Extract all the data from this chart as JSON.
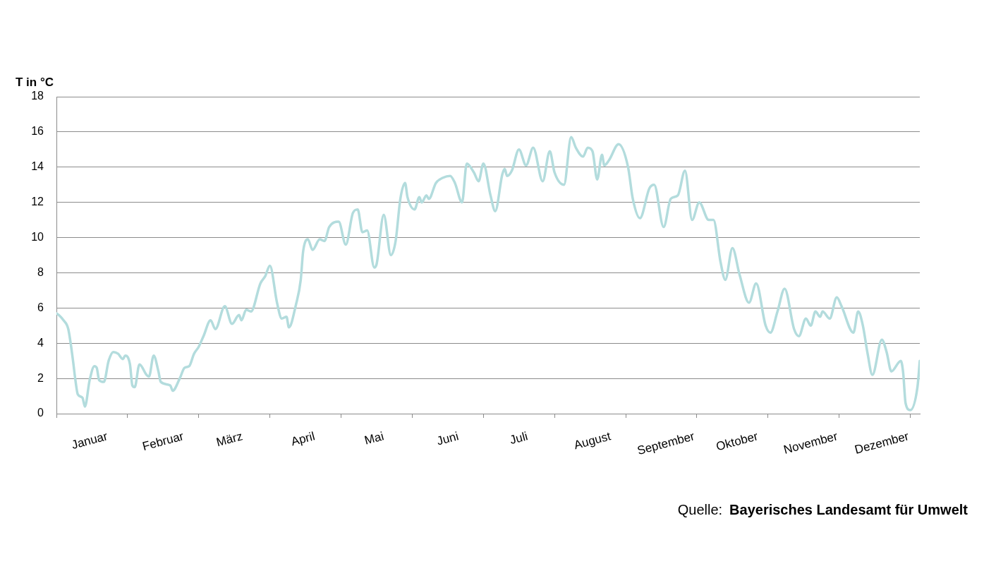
{
  "chart_data": {
    "type": "line",
    "ylabel": "T in °C",
    "annotations": [
      "Quelle:",
      "Bayerisches Landesamt für Umwelt"
    ],
    "x": [
      "--01-01",
      "--01-02",
      "--01-04",
      "--01-06",
      "--01-08",
      "--01-09",
      "--01-10",
      "--01-12",
      "--01-13",
      "--01-15",
      "--01-17",
      "--01-18",
      "--01-19",
      "--01-21",
      "--01-23",
      "--01-25",
      "--01-27",
      "--01-29",
      "--01-30",
      "--02-01",
      "--02-02",
      "--02-03",
      "--02-05",
      "--02-08",
      "--02-09",
      "--02-11",
      "--02-13",
      "--02-14",
      "--02-18",
      "--02-19",
      "--02-22",
      "--02-24",
      "--02-26",
      "--02-28",
      "--03-02",
      "--03-04",
      "--03-07",
      "--03-09",
      "--03-13",
      "--03-16",
      "--03-19",
      "--03-20",
      "--03-22",
      "--03-24",
      "--03-28",
      "--03-30",
      "--04-01",
      "--04-04",
      "--04-06",
      "--04-08",
      "--04-09",
      "--04-12",
      "--04-14",
      "--04-15",
      "--04-17",
      "--04-19",
      "--04-22",
      "--04-24",
      "--04-26",
      "--04-30",
      "--05-03",
      "--05-06",
      "--05-08",
      "--05-10",
      "--05-12",
      "--05-15",
      "--05-16",
      "--05-19",
      "--05-22",
      "--05-24",
      "--05-26",
      "--05-28",
      "--05-29",
      "--06-01",
      "--06-03",
      "--06-04",
      "--06-06",
      "--06-07",
      "--06-10",
      "--06-13",
      "--06-16",
      "--06-18",
      "--06-21",
      "--06-23",
      "--06-26",
      "--06-28",
      "--06-30",
      "--07-03",
      "--07-05",
      "--07-08",
      "--07-09",
      "--07-10",
      "--07-12",
      "--07-15",
      "--07-18",
      "--07-21",
      "--07-25",
      "--07-28",
      "--07-30",
      "--08-03",
      "--08-06",
      "--08-08",
      "--08-11",
      "--08-13",
      "--08-15",
      "--08-17",
      "--08-19",
      "--08-20",
      "--08-22",
      "--08-26",
      "--08-30",
      "--09-01",
      "--09-04",
      "--09-08",
      "--09-10",
      "--09-14",
      "--09-17",
      "--09-20",
      "--09-23",
      "--09-26",
      "--09-29",
      "--10-03",
      "--10-05",
      "--10-08",
      "--10-10",
      "--10-13",
      "--10-16",
      "--10-20",
      "--10-23",
      "--10-27",
      "--10-29",
      "--11-01",
      "--11-04",
      "--11-08",
      "--11-10",
      "--11-13",
      "--11-15",
      "--11-17",
      "--11-19",
      "--11-20",
      "--11-23",
      "--11-26",
      "--11-28",
      "--12-03",
      "--12-05",
      "--12-07",
      "--12-09",
      "--12-11",
      "--12-15",
      "--12-17",
      "--12-19",
      "--12-23",
      "--12-24",
      "--12-25",
      "--12-27",
      "--12-30",
      "--12-31"
    ],
    "values": [
      5.7,
      5.6,
      5.3,
      4.8,
      3.0,
      1.9,
      1.1,
      0.9,
      0.4,
      1.9,
      2.7,
      2.6,
      1.9,
      1.8,
      3.0,
      3.5,
      3.4,
      3.1,
      3.3,
      2.8,
      1.6,
      1.5,
      2.8,
      2.2,
      2.1,
      3.3,
      2.4,
      1.8,
      1.6,
      1.3,
      2.0,
      2.6,
      2.7,
      3.4,
      3.8,
      4.4,
      5.3,
      4.8,
      6.1,
      5.1,
      5.6,
      5.3,
      5.9,
      5.8,
      7.4,
      7.8,
      8.4,
      6.3,
      5.4,
      5.5,
      4.9,
      6.2,
      7.6,
      9.2,
      9.9,
      9.3,
      9.9,
      9.8,
      10.6,
      10.9,
      9.6,
      11.4,
      11.6,
      10.3,
      10.4,
      8.3,
      8.5,
      11.3,
      9.0,
      9.8,
      12.2,
      13.1,
      12.3,
      11.6,
      12.3,
      12.0,
      12.4,
      12.2,
      13.1,
      13.4,
      13.5,
      13.1,
      12.0,
      14.2,
      13.7,
      13.2,
      14.2,
      12.4,
      11.5,
      13.6,
      13.9,
      13.5,
      13.8,
      15.0,
      14.1,
      15.1,
      13.2,
      14.9,
      13.7,
      13.0,
      15.7,
      15.1,
      14.6,
      15.1,
      14.9,
      13.3,
      14.7,
      14.1,
      14.4,
      15.3,
      14.0,
      12.2,
      11.1,
      12.8,
      13.0,
      10.6,
      12.2,
      12.4,
      13.8,
      11.0,
      12.0,
      11.0,
      11.0,
      8.6,
      7.6,
      9.4,
      7.9,
      6.3,
      7.4,
      5.0,
      4.6,
      5.8,
      7.1,
      4.8,
      4.4,
      5.4,
      5.0,
      5.8,
      5.5,
      5.8,
      5.4,
      6.6,
      6.1,
      4.6,
      5.8,
      5.0,
      3.4,
      2.2,
      4.2,
      3.5,
      2.4,
      3.0,
      2.3,
      0.6,
      0.2,
      1.5,
      3.0
    ],
    "color": "#b3dcdd",
    "line_style": "solid",
    "marker": "none",
    "xlim": [
      "--01-01",
      "--12-31"
    ],
    "xticks": [
      {
        "value": "--01-01",
        "label": null
      },
      {
        "value": "--01-15",
        "label": "Januar"
      },
      {
        "value": "--01-31",
        "label": null
      },
      {
        "value": "--02-15",
        "label": "Februar"
      },
      {
        "value": "--03-02",
        "label": null
      },
      {
        "value": "--03-15",
        "label": "März"
      },
      {
        "value": "--04-01",
        "label": null
      },
      {
        "value": "--04-15",
        "label": "April"
      },
      {
        "value": "--05-01",
        "label": null
      },
      {
        "value": "--05-15",
        "label": "Mai"
      },
      {
        "value": "--05-31",
        "label": null
      },
      {
        "value": "--06-15",
        "label": "Juni"
      },
      {
        "value": "--06-30",
        "label": null
      },
      {
        "value": "--07-15",
        "label": "Juli"
      },
      {
        "value": "--07-30",
        "label": null
      },
      {
        "value": "--08-15",
        "label": "August"
      },
      {
        "value": "--08-29",
        "label": null
      },
      {
        "value": "--09-15",
        "label": "September"
      },
      {
        "value": "--09-28",
        "label": null
      },
      {
        "value": "--10-15",
        "label": "Oktober"
      },
      {
        "value": "--10-28",
        "label": null
      },
      {
        "value": "--11-15",
        "label": "November"
      },
      {
        "value": "--11-27",
        "label": null
      },
      {
        "value": "--12-15",
        "label": "Dezember"
      },
      {
        "value": "--12-27",
        "label": null
      }
    ],
    "ylim": [
      0,
      18
    ],
    "yticks": [
      0,
      2,
      4,
      6,
      8,
      10,
      12,
      14,
      16,
      18
    ],
    "grid": "y"
  }
}
